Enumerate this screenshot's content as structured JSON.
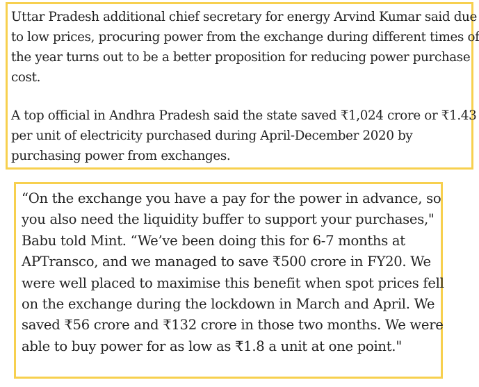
{
  "article": {
    "excerpt_box": {
      "paragraphs": [
        {
          "lines": [
            "Uttar Pradesh additional chief secretary for energy Arvind Kumar said due",
            "to low prices, procuring power from the exchange during different times of",
            "the year turns out to be a better proposition for reducing power purchase",
            "cost."
          ]
        },
        {
          "lines": [
            "A top official in Andhra Pradesh said the state saved ₹1,024 crore or ₹1.43",
            "per unit of electricity purchased during April-December 2020 by",
            "purchasing power from exchanges."
          ]
        }
      ]
    },
    "quote_box": {
      "lines": [
        "“On the exchange you have a pay for the power in advance, so",
        "you also need the liquidity buffer to support your purchases,\"",
        "Babu told Mint. “We’ve been doing this for 6-7 months at",
        "APTransco, and we managed to save ₹500 crore in FY20. We",
        "were well placed to maximise this benefit when spot prices fell",
        "on the exchange during the lockdown in March and April. We",
        "saved ₹56 crore and ₹132 crore in those two months. We were",
        "able to buy power for as low as ₹1.8 a unit at one point.\""
      ]
    }
  },
  "colors": {
    "highlight_border": "#f7d04f",
    "text": "#222222",
    "background": "#ffffff"
  }
}
